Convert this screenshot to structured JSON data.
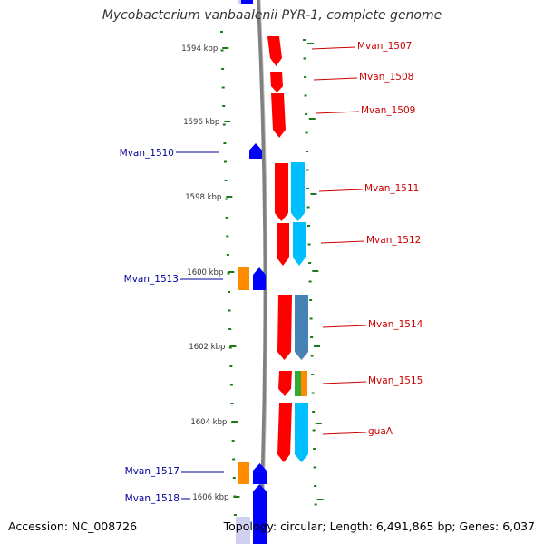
{
  "title": "Mycobacterium vanbaalenii PYR-1, complete genome",
  "footer": {
    "accession": "Accession: NC_008726",
    "topology": "Topology: circular; Length: 6,491,865 bp; Genes: 6,037"
  },
  "colors": {
    "forward_gene": "#ff0000",
    "reverse_gene": "#0000ff",
    "forward_label": "#cc0000",
    "reverse_label": "#000099",
    "backbone": "#808080",
    "tick": "#1a7a1a",
    "cog_cyan": "#00bfff",
    "cog_steelblue": "#4682b4",
    "cog_orange": "#ff8c00",
    "cog_green": "#33aa33",
    "cog_lavender": "#d0d0f0"
  },
  "scale_labels": [
    "1594 kbp",
    "1596 kbp",
    "1598 kbp",
    "1600 kbp",
    "1602 kbp",
    "1604 kbp",
    "1606 kbp"
  ],
  "forward_genes": [
    {
      "name": "Mvan_1507"
    },
    {
      "name": "Mvan_1508"
    },
    {
      "name": "Mvan_1509"
    },
    {
      "name": "Mvan_1511"
    },
    {
      "name": "Mvan_1512"
    },
    {
      "name": "Mvan_1514"
    },
    {
      "name": "Mvan_1515"
    },
    {
      "name": "guaA"
    }
  ],
  "reverse_genes": [
    {
      "name": "Mvan_1510"
    },
    {
      "name": "Mvan_1513"
    },
    {
      "name": "Mvan_1517"
    },
    {
      "name": "Mvan_1518"
    }
  ]
}
